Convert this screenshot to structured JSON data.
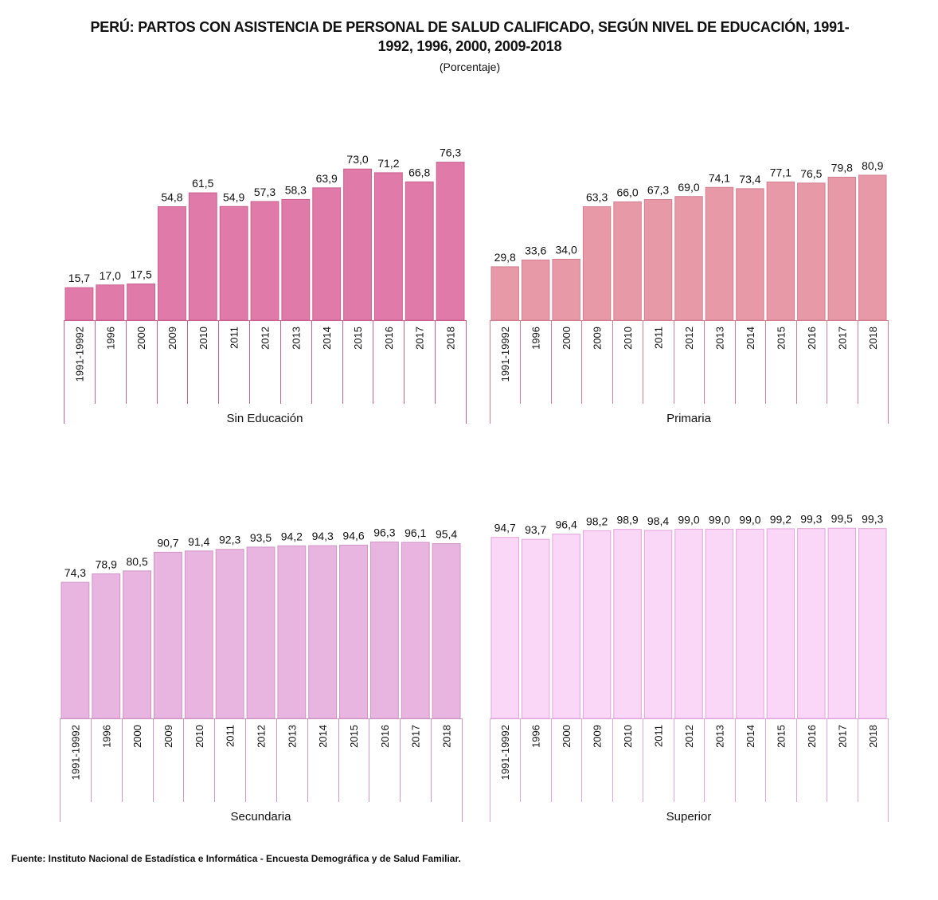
{
  "title": "PERÚ: PARTOS CON ASISTENCIA DE PERSONAL DE SALUD CALIFICADO, SEGÚN NIVEL DE EDUCACIÓN, 1991-1992, 1996, 2000, 2009-2018",
  "title_line1": "PERÚ: PARTOS CON ASISTENCIA DE PERSONAL DE SALUD CALIFICADO, SEGÚN NIVEL DE EDUCACIÓN, 1991-",
  "title_line2": "1992, 1996, 2000, 2009-2018",
  "subtitle": "(Porcentaje)",
  "source": "Fuente: Instituto Nacional de Estadística e Informática - Encuesta Demográfica y de Salud Familiar.",
  "chart_data": [
    {
      "type": "bar",
      "group": "Sin Educación",
      "color": "#e07aa8",
      "border": "#c9608f",
      "categories": [
        "1991-19992",
        "1996",
        "2000",
        "2009",
        "2010",
        "2011",
        "2012",
        "2013",
        "2014",
        "2015",
        "2016",
        "2017",
        "2018"
      ],
      "values": [
        15.7,
        17.0,
        17.5,
        54.8,
        61.5,
        54.9,
        57.3,
        58.3,
        63.9,
        73.0,
        71.2,
        66.8,
        76.3
      ],
      "labels": [
        "15,7",
        "17,0",
        "17,5",
        "54,8",
        "61,5",
        "54,9",
        "57,3",
        "58,3",
        "63,9",
        "73,0",
        "71,2",
        "66,8",
        "76,3"
      ]
    },
    {
      "type": "bar",
      "group": "Primaria",
      "color": "#e899a8",
      "border": "#d27f8f",
      "categories": [
        "1991-19992",
        "1996",
        "2000",
        "2009",
        "2010",
        "2011",
        "2012",
        "2013",
        "2014",
        "2015",
        "2016",
        "2017",
        "2018"
      ],
      "values": [
        29.8,
        33.6,
        34.0,
        63.3,
        66.0,
        67.3,
        69.0,
        74.1,
        73.4,
        77.1,
        76.5,
        79.8,
        80.9
      ],
      "labels": [
        "29,8",
        "33,6",
        "34,0",
        "63,3",
        "66,0",
        "67,3",
        "69,0",
        "74,1",
        "73,4",
        "77,1",
        "76,5",
        "79,8",
        "80,9"
      ]
    },
    {
      "type": "bar",
      "group": "Secundaria",
      "color": "#e8b4e0",
      "border": "#cf95c6",
      "categories": [
        "1991-19992",
        "1996",
        "2000",
        "2009",
        "2010",
        "2011",
        "2012",
        "2013",
        "2014",
        "2015",
        "2016",
        "2017",
        "2018"
      ],
      "values": [
        74.3,
        78.9,
        80.5,
        90.7,
        91.4,
        92.3,
        93.5,
        94.2,
        94.3,
        94.6,
        96.3,
        96.1,
        95.4
      ],
      "labels": [
        "74,3",
        "78,9",
        "80,5",
        "90,7",
        "91,4",
        "92,3",
        "93,5",
        "94,2",
        "94,3",
        "94,6",
        "96,3",
        "96,1",
        "95,4"
      ]
    },
    {
      "type": "bar",
      "group": "Superior",
      "color": "#fad6f7",
      "border": "#e2a4dc",
      "categories": [
        "1991-19992",
        "1996",
        "2000",
        "2009",
        "2010",
        "2011",
        "2012",
        "2013",
        "2014",
        "2015",
        "2016",
        "2017",
        "2018"
      ],
      "values": [
        94.7,
        93.7,
        96.4,
        98.2,
        98.9,
        98.4,
        99.0,
        99.0,
        99.0,
        99.2,
        99.3,
        99.5,
        99.3
      ],
      "labels": [
        "94,7",
        "93,7",
        "96,4",
        "98,2",
        "98,9",
        "98,4",
        "99,0",
        "99,0",
        "99,0",
        "99,2",
        "99,3",
        "99,5",
        "99,3"
      ]
    }
  ]
}
